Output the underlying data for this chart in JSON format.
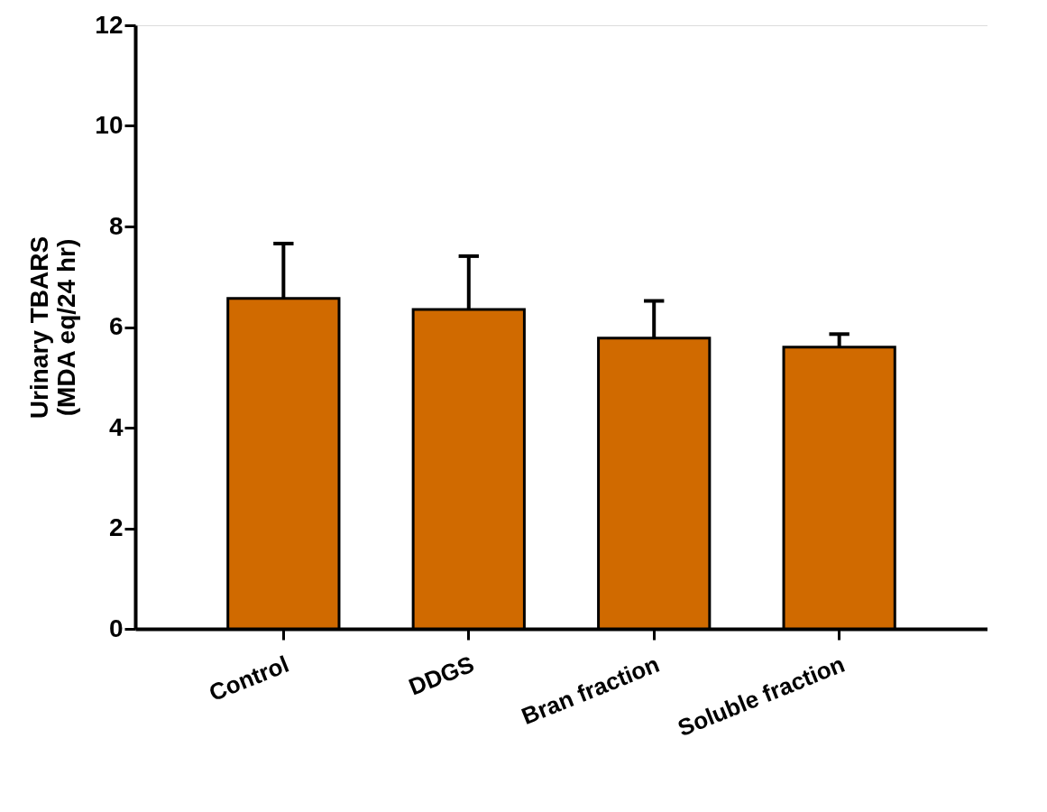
{
  "chart_data": {
    "type": "bar",
    "ylabel": "Urinary TBARS\n(MDA eq/24 hr)",
    "categories": [
      "Control",
      "DDGS",
      "Bran fraction",
      "Soluble fraction"
    ],
    "values": [
      6.57,
      6.35,
      5.78,
      5.6
    ],
    "errors": [
      [
        6.57,
        7.66
      ],
      [
        6.35,
        7.41
      ],
      [
        5.78,
        6.52
      ],
      [
        5.6,
        5.86
      ]
    ],
    "color": "#d06a00",
    "ylim": [
      0,
      12
    ],
    "yticks": [
      {
        "value": 0,
        "label": "0"
      },
      {
        "value": 2,
        "label": "2"
      },
      {
        "value": 4,
        "label": "4"
      },
      {
        "value": 6,
        "label": "6"
      },
      {
        "value": 8,
        "label": "8"
      },
      {
        "value": 10,
        "label": "10"
      },
      {
        "value": 12,
        "label": "12"
      }
    ]
  }
}
